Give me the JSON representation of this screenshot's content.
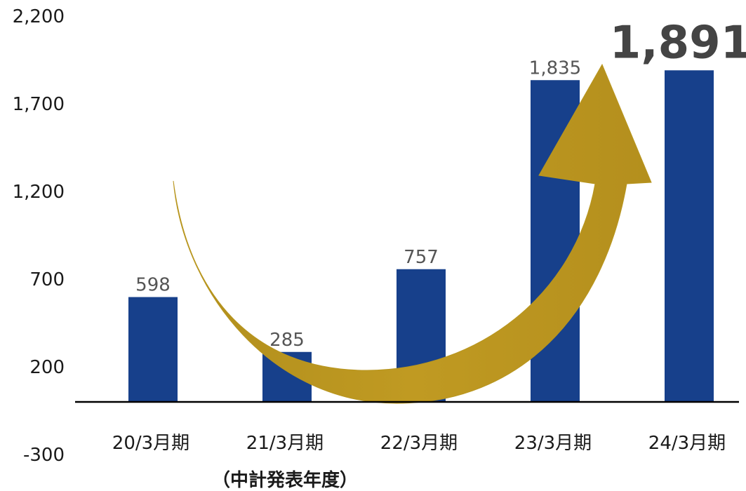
{
  "chart_data": {
    "type": "bar",
    "categories": [
      "20/3月期",
      "21/3月期",
      "22/3月期",
      "23/3月期",
      "24/3月期"
    ],
    "category_sublabels": [
      "",
      "（中計発表年度）",
      "",
      "",
      ""
    ],
    "values": [
      598,
      285,
      757,
      1835,
      1891
    ],
    "value_labels": [
      "598",
      "285",
      "757",
      "1,835",
      "1,891"
    ],
    "highlight_index": 4,
    "ylim": [
      -300,
      2200
    ],
    "yticks": [
      2200,
      1700,
      1200,
      700,
      200,
      -300
    ],
    "ytick_labels": [
      "2,200",
      "1,700",
      "1,200",
      "700",
      "200",
      "-300"
    ],
    "grid": false,
    "title": "",
    "xlabel": "",
    "ylabel": "",
    "annotation": {
      "type": "curved-arrow",
      "color": "#b8961f",
      "meaning": "upward trend"
    },
    "colors": {
      "bar": "#17408b",
      "arrow": "#b8961f",
      "axis": "#000000"
    }
  }
}
